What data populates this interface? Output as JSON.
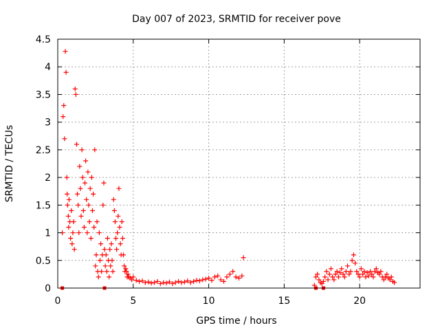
{
  "chart_data": {
    "type": "scatter",
    "title": "Day 007 of 2023, SRMTID for receiver pove",
    "xlabel": "GPS time / hours",
    "ylabel": "SRMTID / TECUs",
    "xlim": [
      0,
      24
    ],
    "ylim": [
      0,
      4.5
    ],
    "x_ticks": [
      0,
      5,
      10,
      15,
      20
    ],
    "x_tick_labels": [
      "0",
      "5",
      "10",
      "15",
      "20"
    ],
    "y_ticks": [
      0,
      0.5,
      1,
      1.5,
      2,
      2.5,
      3,
      3.5,
      4,
      4.5
    ],
    "y_tick_labels": [
      "0",
      "0.5",
      "1",
      "1.5",
      "2",
      "2.5",
      "3",
      "3.5",
      "4",
      "4.5"
    ],
    "grid": true,
    "marker": "plus",
    "color": "#ff0000",
    "series": [
      {
        "x": [
          0.3,
          0.35,
          0.4,
          0.45,
          0.5,
          0.55,
          0.6,
          0.62,
          0.65,
          0.7,
          0.72,
          0.75,
          0.8,
          0.85,
          0.9,
          0.95,
          1.0,
          1.05,
          1.1,
          1.15,
          1.2,
          1.25,
          1.3,
          1.35,
          1.4,
          1.45,
          1.5,
          1.55,
          1.6,
          1.65,
          1.7,
          1.75,
          1.8,
          1.85,
          1.9,
          1.95,
          2.0,
          2.05,
          2.1,
          2.15,
          2.2,
          2.25,
          2.3,
          2.35,
          2.4,
          2.45,
          2.5,
          2.55,
          2.6,
          2.65,
          2.7,
          2.75,
          2.8,
          2.85,
          2.9,
          2.95,
          3.0,
          3.05,
          3.1,
          3.15,
          3.2,
          3.25,
          3.3,
          3.35,
          3.4,
          3.45,
          3.5,
          3.55,
          3.6,
          3.65,
          3.7,
          3.75,
          3.8,
          3.85,
          3.9,
          3.95,
          4.0,
          4.05,
          4.1,
          4.15,
          4.2,
          4.25,
          4.3,
          4.35,
          4.4,
          4.45,
          4.5,
          4.55,
          4.6,
          4.65,
          4.7,
          4.8,
          4.9,
          5.0,
          5.2,
          5.4,
          5.6,
          5.8,
          6.0,
          6.2,
          6.4,
          6.6,
          6.8,
          7.0,
          7.2,
          7.4,
          7.6,
          7.8,
          8.0,
          8.2,
          8.4,
          8.6,
          8.8,
          9.0,
          9.2,
          9.4,
          9.6,
          9.8,
          10.0,
          10.2,
          10.4,
          10.6,
          10.8,
          11.0,
          11.2,
          11.4,
          11.6,
          11.8,
          12.0,
          12.2,
          12.3
        ],
        "y": [
          1.0,
          3.1,
          3.3,
          2.7,
          4.28,
          3.9,
          2.0,
          1.7,
          1.5,
          1.3,
          1.1,
          1.6,
          1.2,
          0.9,
          1.4,
          0.8,
          1.0,
          1.2,
          0.7,
          3.6,
          3.5,
          2.6,
          1.7,
          1.5,
          1.0,
          2.2,
          1.8,
          1.3,
          2.5,
          2.0,
          1.4,
          1.1,
          1.9,
          2.3,
          1.6,
          1.0,
          2.1,
          1.5,
          1.2,
          1.8,
          0.9,
          2.0,
          1.4,
          1.7,
          1.1,
          2.5,
          0.4,
          0.6,
          1.2,
          0.3,
          0.2,
          1.0,
          0.5,
          0.8,
          0.3,
          0.6,
          1.5,
          1.9,
          0.7,
          0.4,
          0.6,
          0.3,
          0.9,
          0.5,
          0.2,
          0.7,
          0.4,
          0.8,
          0.5,
          0.3,
          1.6,
          1.4,
          1.2,
          0.9,
          0.7,
          1.0,
          1.3,
          1.8,
          1.1,
          0.8,
          0.6,
          1.2,
          0.9,
          0.6,
          0.4,
          0.3,
          0.35,
          0.3,
          0.2,
          0.25,
          0.2,
          0.18,
          0.15,
          0.2,
          0.14,
          0.12,
          0.13,
          0.1,
          0.11,
          0.09,
          0.1,
          0.12,
          0.08,
          0.1,
          0.09,
          0.11,
          0.08,
          0.1,
          0.12,
          0.1,
          0.11,
          0.13,
          0.1,
          0.12,
          0.14,
          0.13,
          0.15,
          0.16,
          0.18,
          0.14,
          0.2,
          0.22,
          0.15,
          0.12,
          0.2,
          0.25,
          0.3,
          0.2,
          0.18,
          0.22,
          0.55
        ]
      },
      {
        "x": [
          17.0,
          17.1,
          17.2,
          17.3,
          17.4,
          17.5,
          17.6,
          17.7,
          17.8,
          17.9,
          18.0,
          18.1,
          18.2,
          18.3,
          18.4,
          18.5,
          18.6,
          18.7,
          18.8,
          18.9,
          19.0,
          19.1,
          19.2,
          19.3,
          19.4,
          19.5,
          19.6,
          19.7,
          19.8,
          19.9,
          20.0,
          20.1,
          20.2,
          20.3,
          20.4,
          20.5,
          20.6,
          20.7,
          20.8,
          20.9,
          21.0,
          21.1,
          21.2,
          21.3,
          21.4,
          21.5,
          21.6,
          21.7,
          21.8,
          21.9,
          22.0,
          22.1,
          22.2,
          22.3
        ],
        "y": [
          0.05,
          0.2,
          0.25,
          0.15,
          0.1,
          0.08,
          0.12,
          0.2,
          0.3,
          0.15,
          0.25,
          0.35,
          0.2,
          0.15,
          0.25,
          0.3,
          0.2,
          0.28,
          0.35,
          0.25,
          0.2,
          0.3,
          0.4,
          0.25,
          0.3,
          0.5,
          0.6,
          0.45,
          0.3,
          0.25,
          0.2,
          0.35,
          0.25,
          0.3,
          0.2,
          0.28,
          0.22,
          0.3,
          0.25,
          0.2,
          0.3,
          0.35,
          0.28,
          0.25,
          0.3,
          0.2,
          0.15,
          0.2,
          0.25,
          0.18,
          0.15,
          0.2,
          0.12,
          0.1
        ]
      }
    ],
    "zero_markers_x": [
      0.3,
      3.1,
      17.1,
      17.6
    ]
  }
}
